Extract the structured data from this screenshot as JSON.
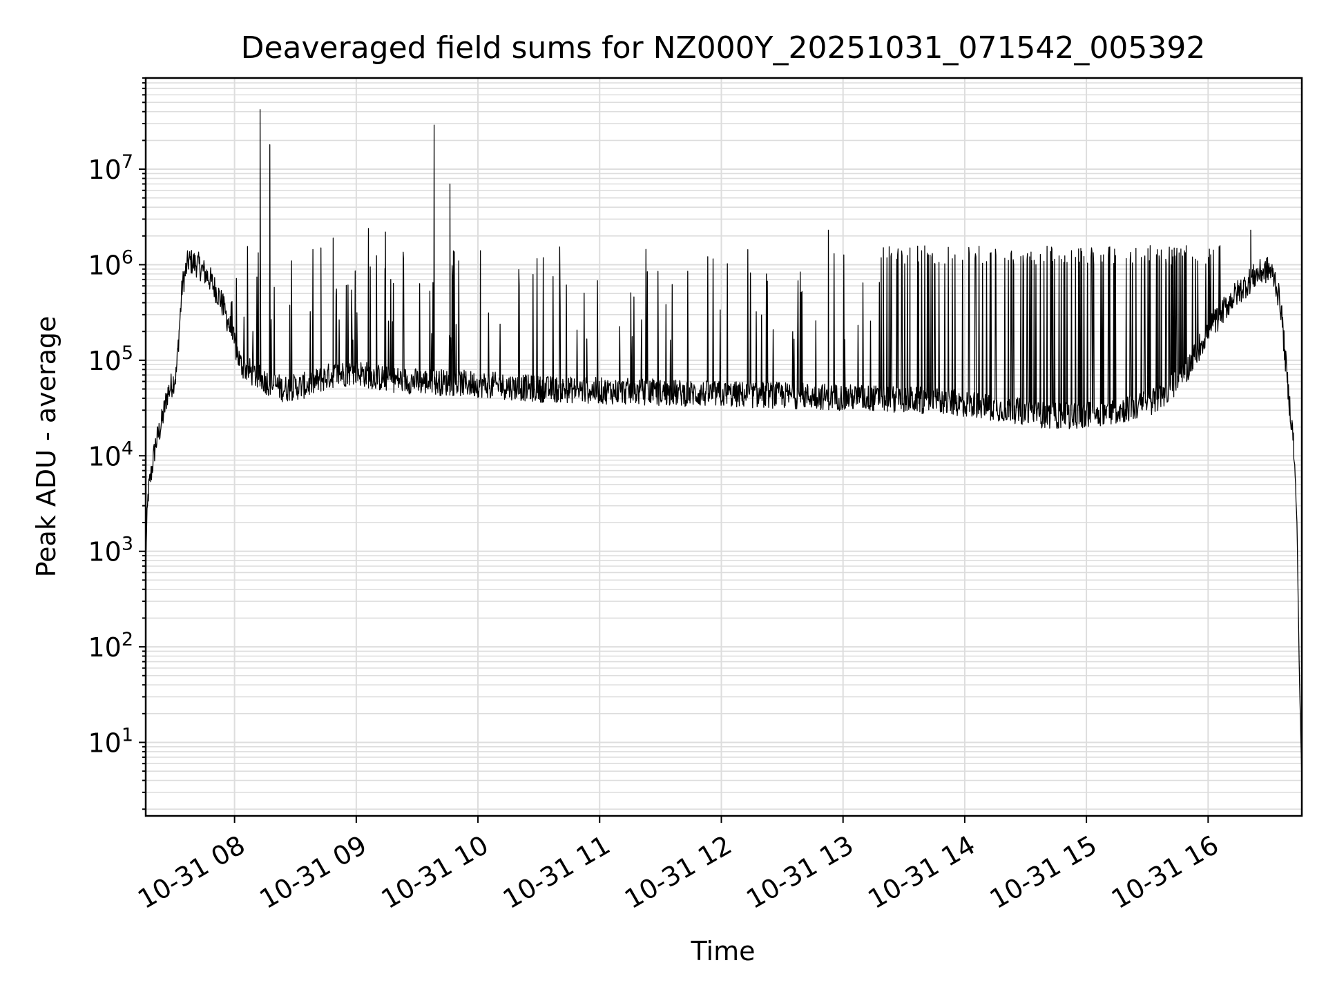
{
  "chart_data": {
    "type": "line",
    "title": "Deaveraged field sums for NZ000Y_20251031_071542_005392",
    "xlabel": "Time",
    "ylabel": "Peak ADU - average",
    "yscale": "log",
    "ylim": [
      1.7,
      90000000
    ],
    "xlim_hours": [
      7.27,
      16.77
    ],
    "grid": true,
    "x_ticks": [
      {
        "hour": 8,
        "label": "10-31 08"
      },
      {
        "hour": 9,
        "label": "10-31 09"
      },
      {
        "hour": 10,
        "label": "10-31 10"
      },
      {
        "hour": 11,
        "label": "10-31 11"
      },
      {
        "hour": 12,
        "label": "10-31 12"
      },
      {
        "hour": 13,
        "label": "10-31 13"
      },
      {
        "hour": 14,
        "label": "10-31 14"
      },
      {
        "hour": 15,
        "label": "10-31 15"
      },
      {
        "hour": 16,
        "label": "10-31 16"
      }
    ],
    "y_ticks": [
      {
        "exp": 1,
        "base": "10",
        "sup": "1"
      },
      {
        "exp": 2,
        "base": "10",
        "sup": "2"
      },
      {
        "exp": 3,
        "base": "10",
        "sup": "3"
      },
      {
        "exp": 4,
        "base": "10",
        "sup": "4"
      },
      {
        "exp": 5,
        "base": "10",
        "sup": "5"
      },
      {
        "exp": 6,
        "base": "10",
        "sup": "6"
      },
      {
        "exp": 7,
        "base": "10",
        "sup": "7"
      }
    ],
    "series": [
      {
        "name": "Peak ADU - average",
        "color": "#000000",
        "baseline": {
          "x": [
            7.27,
            7.29,
            7.35,
            7.4,
            7.45,
            7.52,
            7.57,
            7.62,
            7.7,
            7.8,
            7.88,
            7.95,
            8.05,
            8.2,
            8.4,
            8.6,
            8.8,
            9.0,
            9.2,
            9.5,
            9.8,
            10.1,
            10.5,
            11.0,
            11.5,
            12.0,
            12.5,
            13.0,
            13.5,
            13.8,
            14.1,
            14.4,
            14.6,
            14.8,
            15.0,
            15.2,
            15.4,
            15.6,
            15.8,
            15.9,
            16.0,
            16.1,
            16.2,
            16.3,
            16.4,
            16.5,
            16.55,
            16.6,
            16.63,
            16.66,
            16.7,
            16.73,
            16.75,
            16.77
          ],
          "y": [
            900,
            4000,
            13000,
            22000,
            45000,
            70000,
            600000,
            1100000,
            1000000,
            700000,
            450000,
            250000,
            90000,
            65000,
            50000,
            55000,
            70000,
            75000,
            65000,
            60000,
            58000,
            55000,
            50000,
            48000,
            46000,
            44000,
            43000,
            41000,
            39000,
            37000,
            34000,
            30000,
            27000,
            26000,
            27000,
            29000,
            32000,
            40000,
            70000,
            120000,
            200000,
            300000,
            450000,
            600000,
            800000,
            900000,
            700000,
            350000,
            120000,
            45000,
            15000,
            2000,
            50,
            4
          ]
        },
        "spikes": [
          {
            "x": 8.21,
            "y": 42000000
          },
          {
            "x": 8.29,
            "y": 18000000
          },
          {
            "x": 9.64,
            "y": 29000000
          },
          {
            "x": 9.77,
            "y": 7000000
          },
          {
            "x": 9.1,
            "y": 2400000
          },
          {
            "x": 9.24,
            "y": 2200000
          },
          {
            "x": 8.71,
            "y": 1500000
          },
          {
            "x": 8.81,
            "y": 1900000
          },
          {
            "x": 10.02,
            "y": 1400000
          },
          {
            "x": 12.37,
            "y": 800000
          },
          {
            "x": 12.88,
            "y": 2300000
          },
          {
            "x": 13.55,
            "y": 1500000
          },
          {
            "x": 14.55,
            "y": 1100000
          },
          {
            "x": 15.6,
            "y": 1100000
          },
          {
            "x": 16.35,
            "y": 2300000
          }
        ]
      }
    ]
  }
}
